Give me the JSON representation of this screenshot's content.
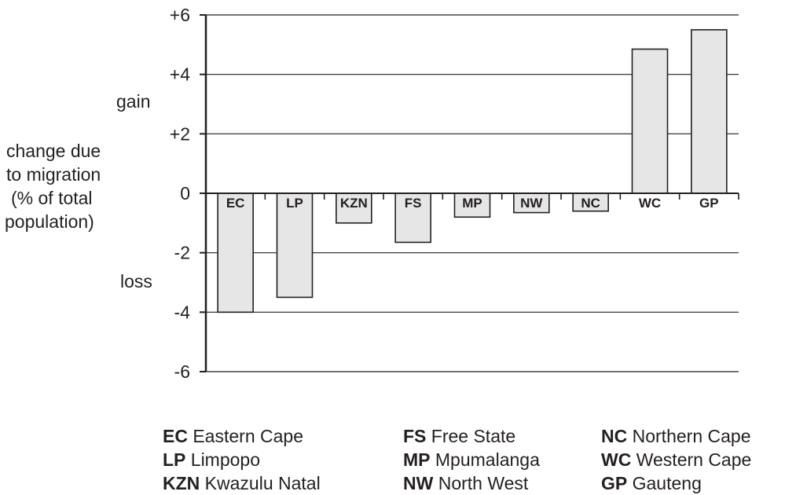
{
  "chart_data": {
    "type": "bar",
    "categories": [
      "EC",
      "LP",
      "KZN",
      "FS",
      "MP",
      "NW",
      "NC",
      "WC",
      "GP"
    ],
    "values": [
      -4.0,
      -3.5,
      -1.0,
      -1.65,
      -0.8,
      -0.65,
      -0.6,
      4.85,
      5.5
    ],
    "ylim": [
      -6,
      6
    ],
    "yticks": [
      "+6",
      "+4",
      "+2",
      "0",
      "-2",
      "-4",
      "-6"
    ],
    "ytick_values": [
      6,
      4,
      2,
      0,
      -2,
      -4,
      -6
    ],
    "ylabel_lines": [
      "change due",
      "to migration",
      "(% of total",
      "population)"
    ],
    "gain_label": "gain",
    "loss_label": "loss",
    "grid": true,
    "bar_color": "#e6e6e6",
    "line_color": "#231f20"
  },
  "legend": {
    "columns": [
      [
        {
          "abbr": "EC",
          "name": "Eastern Cape"
        },
        {
          "abbr": "LP",
          "name": "Limpopo"
        },
        {
          "abbr": "KZN",
          "name": "Kwazulu Natal"
        }
      ],
      [
        {
          "abbr": "FS",
          "name": "Free State"
        },
        {
          "abbr": "MP",
          "name": "Mpumalanga"
        },
        {
          "abbr": "NW",
          "name": "North West"
        }
      ],
      [
        {
          "abbr": "NC",
          "name": "Northern Cape"
        },
        {
          "abbr": "WC",
          "name": "Western Cape"
        },
        {
          "abbr": "GP",
          "name": "Gauteng"
        }
      ]
    ]
  }
}
